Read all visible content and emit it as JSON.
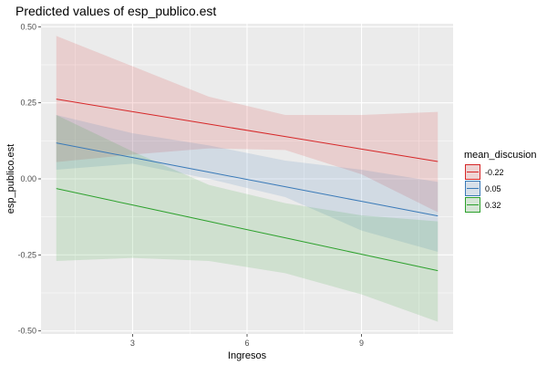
{
  "chart_data": {
    "type": "line",
    "title": "Predicted values of esp_publico.est",
    "xlabel": "Ingresos",
    "ylabel": "esp_publico.est",
    "xlim": [
      0.6,
      11.4
    ],
    "ylim": [
      -0.51,
      0.51
    ],
    "x_ticks": [
      3,
      6,
      9
    ],
    "x_tick_labels": [
      "3",
      "6",
      "9"
    ],
    "y_ticks": [
      -0.5,
      -0.25,
      0,
      0.25,
      0.5
    ],
    "y_tick_labels": [
      "-0.50",
      "-0.25",
      "0.00",
      "0.25",
      "0.50"
    ],
    "grid": true,
    "legend_title": "mean_discusion",
    "legend_position": "right",
    "x": [
      1,
      3,
      5,
      7,
      9,
      11
    ],
    "series": [
      {
        "name": "-0.22",
        "color": "#d62728",
        "values": [
          0.262,
          0.221,
          0.18,
          0.139,
          0.098,
          0.057
        ],
        "lower": [
          0.055,
          0.08,
          0.1,
          0.095,
          0.015,
          -0.11
        ],
        "upper": [
          0.47,
          0.37,
          0.27,
          0.21,
          0.21,
          0.22
        ]
      },
      {
        "name": "0.05",
        "color": "#3a7ab8",
        "values": [
          0.118,
          0.07,
          0.022,
          -0.026,
          -0.074,
          -0.122
        ],
        "lower": [
          0.03,
          0.05,
          0.0,
          -0.06,
          -0.17,
          -0.24
        ],
        "upper": [
          0.21,
          0.15,
          0.11,
          0.06,
          0.03,
          -0.01
        ]
      },
      {
        "name": "0.32",
        "color": "#2ca02c",
        "values": [
          -0.032,
          -0.086,
          -0.14,
          -0.194,
          -0.248,
          -0.302
        ],
        "lower": [
          -0.27,
          -0.26,
          -0.27,
          -0.31,
          -0.38,
          -0.47
        ],
        "upper": [
          0.21,
          0.09,
          -0.02,
          -0.08,
          -0.12,
          -0.14
        ]
      }
    ]
  }
}
